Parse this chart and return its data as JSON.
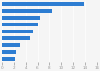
{
  "values": [
    13.9,
    8.5,
    6.5,
    6.1,
    5.3,
    4.7,
    3.1,
    2.4,
    2.2
  ],
  "bar_color": "#2d7dd2",
  "background_color": "#f5f5f5",
  "plot_bg_color": "#f5f5f5",
  "grid_color": "#ffffff",
  "xlim": [
    0,
    16
  ],
  "figsize": [
    1.0,
    0.71
  ],
  "dpi": 100,
  "bar_height": 0.55
}
